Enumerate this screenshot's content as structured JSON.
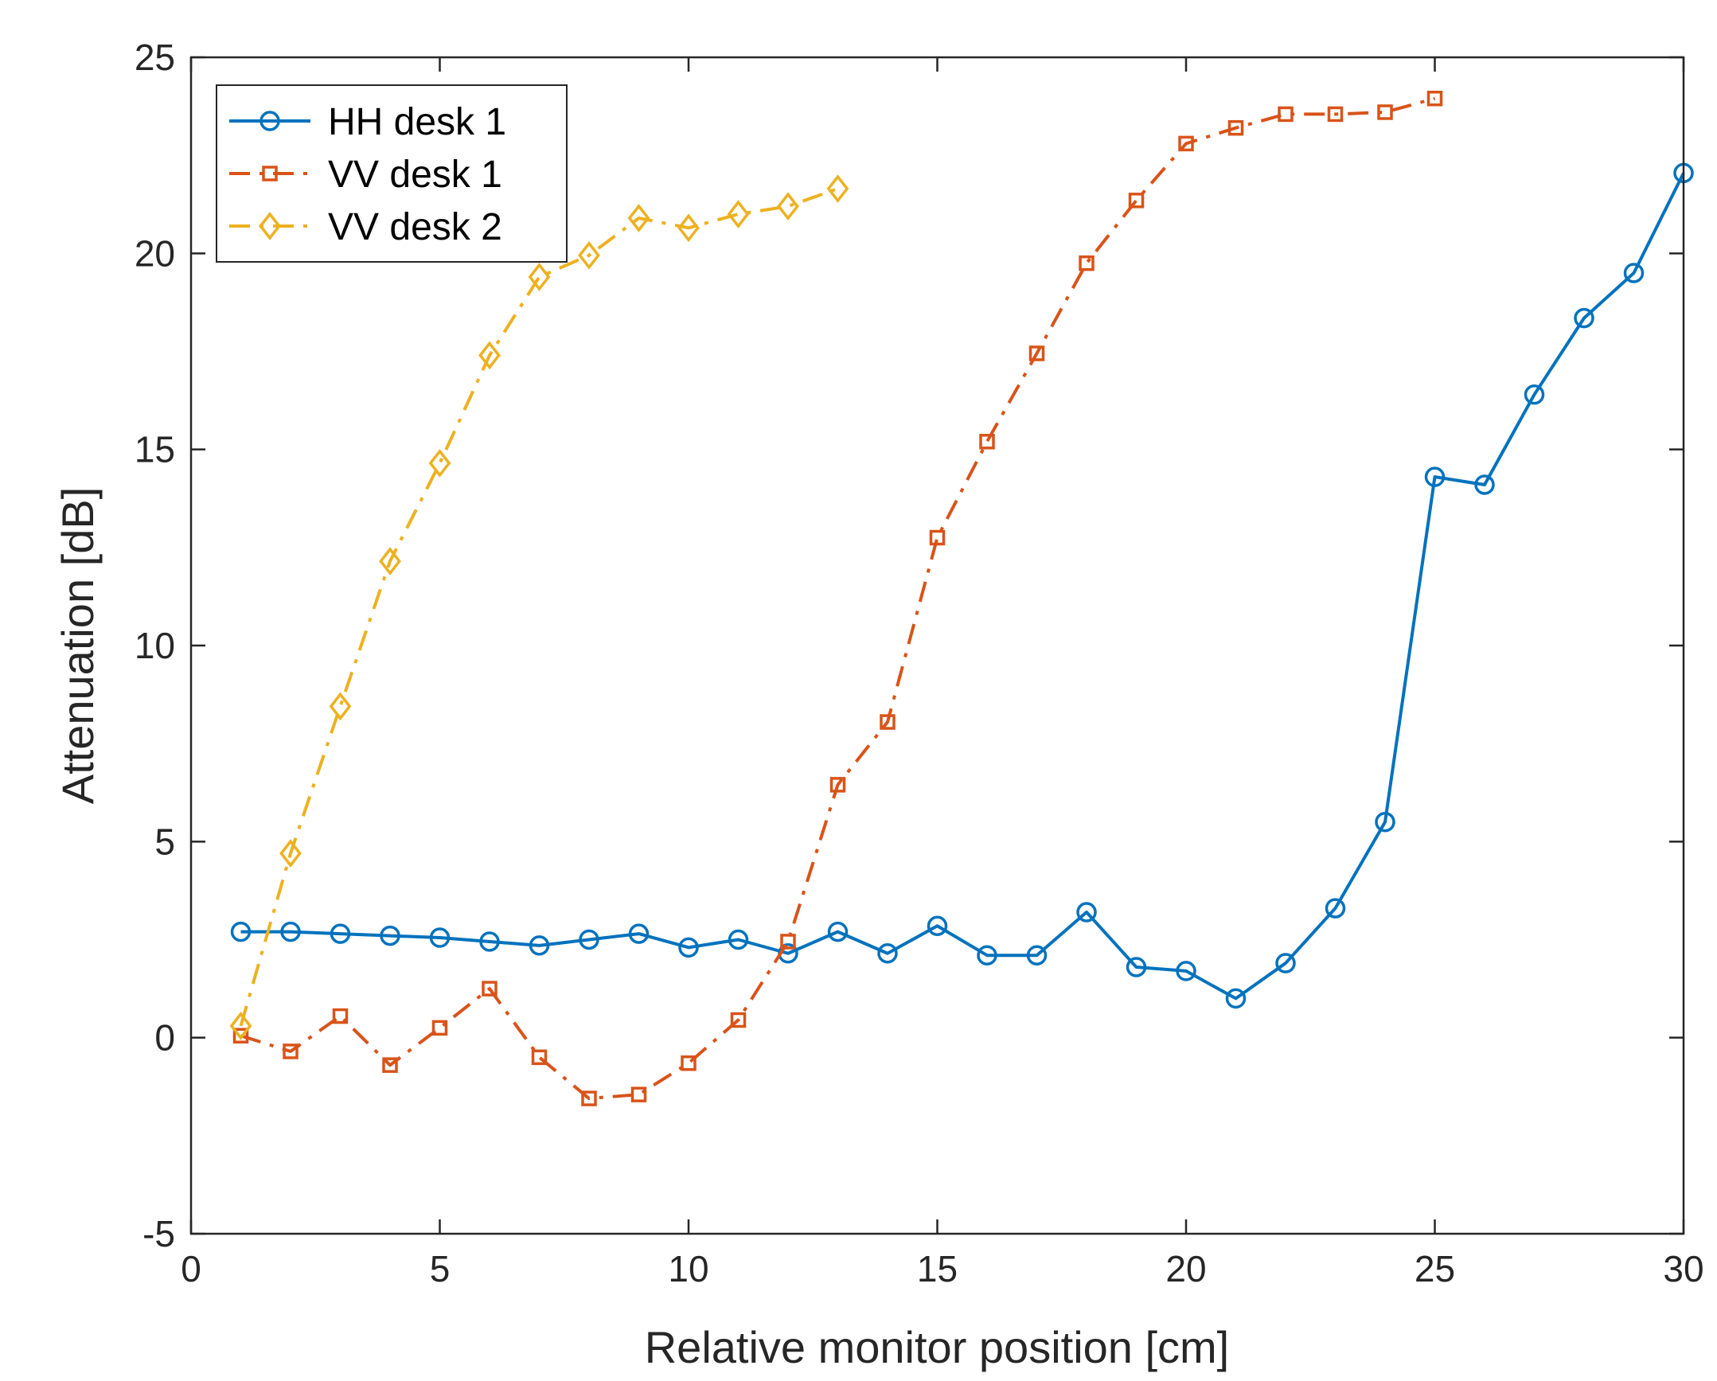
{
  "chart_data": {
    "type": "line",
    "xlabel": "Relative monitor position [cm]",
    "ylabel": "Attenuation [dB]",
    "xlim": [
      0,
      30
    ],
    "ylim": [
      -5,
      25
    ],
    "xticks": [
      0,
      5,
      10,
      15,
      20,
      25,
      30
    ],
    "yticks": [
      -5,
      0,
      5,
      10,
      15,
      20,
      25
    ],
    "grid": false,
    "legend_position": "top-left",
    "series": [
      {
        "name": "HH desk 1",
        "color": "#0072BD",
        "line_style": "solid",
        "marker": "circle",
        "x": [
          1,
          2,
          3,
          4,
          5,
          6,
          7,
          8,
          9,
          10,
          11,
          12,
          13,
          14,
          15,
          16,
          17,
          18,
          19,
          20,
          21,
          22,
          23,
          24,
          25,
          26,
          27,
          28,
          29,
          30
        ],
        "y": [
          2.7,
          2.7,
          2.65,
          2.6,
          2.55,
          2.45,
          2.35,
          2.5,
          2.65,
          2.3,
          2.5,
          2.15,
          2.7,
          2.15,
          2.85,
          2.1,
          2.1,
          3.2,
          1.8,
          1.7,
          1.0,
          1.9,
          3.3,
          5.5,
          14.3,
          14.1,
          16.4,
          18.35,
          19.5,
          22.05
        ]
      },
      {
        "name": "VV desk 1",
        "color": "#D95319",
        "line_style": "dashdot",
        "marker": "square",
        "x": [
          1,
          2,
          3,
          4,
          5,
          6,
          7,
          8,
          9,
          10,
          11,
          12,
          13,
          14,
          15,
          16,
          17,
          18,
          19,
          20,
          21,
          22,
          23,
          24,
          25
        ],
        "y": [
          0.05,
          -0.35,
          0.55,
          -0.7,
          0.25,
          1.25,
          -0.5,
          -1.55,
          -1.45,
          -0.65,
          0.45,
          2.45,
          6.45,
          8.05,
          12.75,
          15.2,
          17.45,
          19.75,
          21.35,
          22.8,
          23.2,
          23.55,
          23.55,
          23.6,
          23.95
        ]
      },
      {
        "name": "VV desk 2",
        "color": "#EDB120",
        "line_style": "dashdot",
        "marker": "diamond",
        "x": [
          1,
          2,
          3,
          4,
          5,
          6,
          7,
          8,
          9,
          10,
          11,
          12,
          13
        ],
        "y": [
          0.3,
          4.7,
          8.45,
          12.15,
          14.65,
          17.4,
          19.4,
          19.95,
          20.9,
          20.65,
          21.0,
          21.2,
          21.65
        ]
      }
    ]
  }
}
